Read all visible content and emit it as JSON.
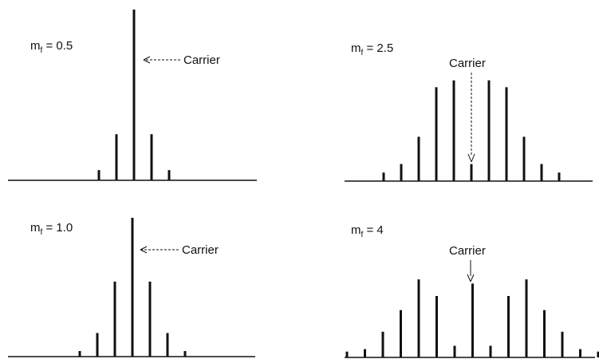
{
  "chart_data": [
    {
      "type": "bar",
      "label_main": "m",
      "label_sub": "f",
      "label_rest": " = 0.5",
      "carrier_label": "Carrier",
      "amplitudes": [
        0.06,
        0.27,
        1.0,
        0.27,
        0.06
      ]
    },
    {
      "type": "bar",
      "label_main": "m",
      "label_sub": "f",
      "label_rest": " = 2.5",
      "carrier_label": "Carrier",
      "amplitudes": [
        0.05,
        0.1,
        0.26,
        0.55,
        0.59,
        0.1,
        0.59,
        0.55,
        0.26,
        0.1,
        0.05
      ]
    },
    {
      "type": "bar",
      "label_main": "m",
      "label_sub": "f",
      "label_rest": " = 1.0",
      "carrier_label": "Carrier",
      "amplitudes": [
        0.04,
        0.17,
        0.54,
        1.0,
        0.54,
        0.17,
        0.04
      ]
    },
    {
      "type": "bar",
      "label_main": "m",
      "label_sub": "f",
      "label_rest": " = 4",
      "carrier_label": "Carrier",
      "amplitudes": [
        0.07,
        0.1,
        0.31,
        0.57,
        0.94,
        0.74,
        0.14,
        0.89,
        0.14,
        0.74,
        0.94,
        0.57,
        0.31,
        0.1,
        0.07
      ]
    }
  ]
}
